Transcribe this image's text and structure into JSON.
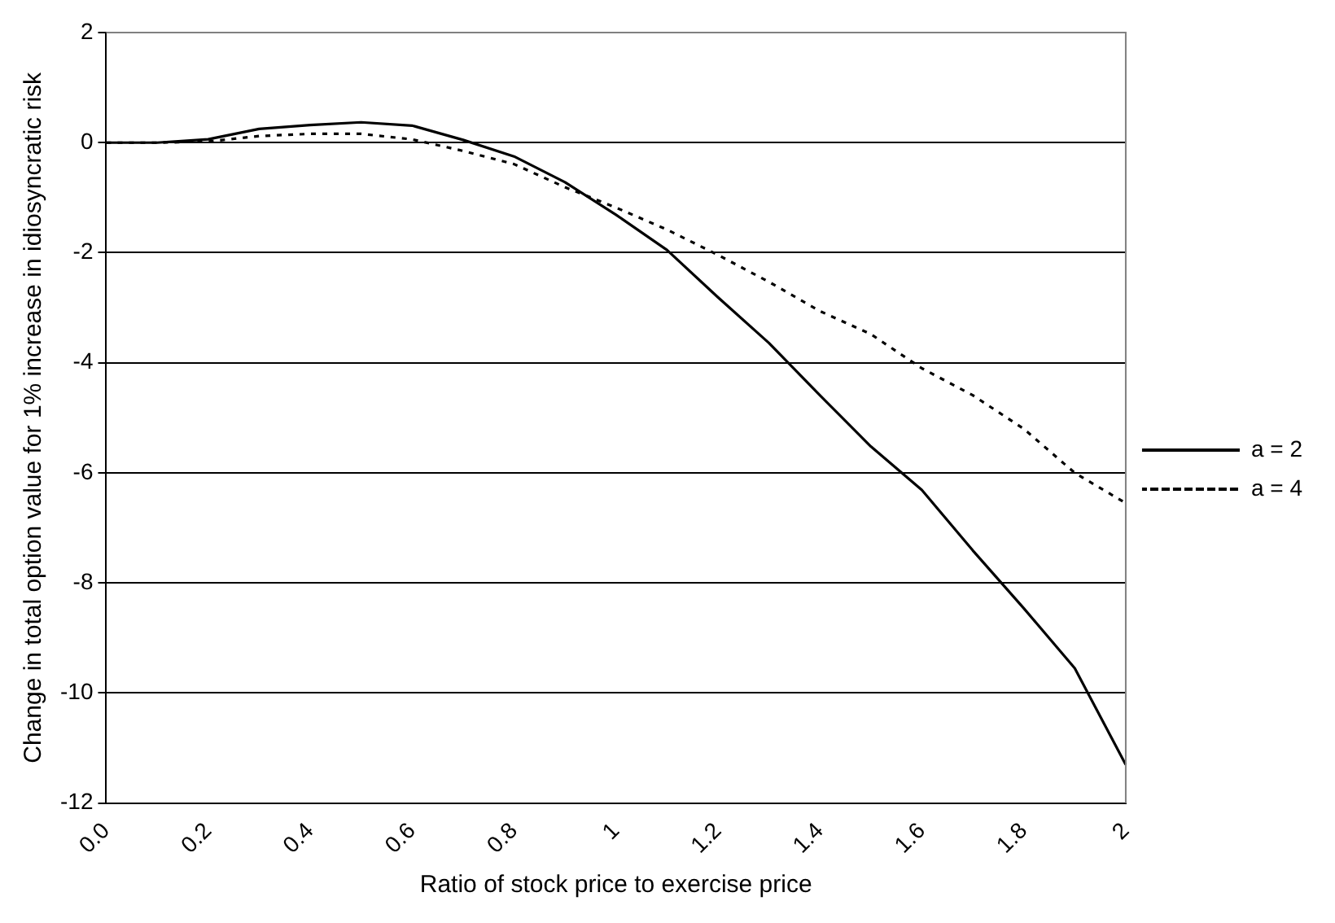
{
  "chart_data": {
    "type": "line",
    "xlabel": "Ratio of stock price to exercise price",
    "ylabel": "Change in total option value for 1% increase in idiosyncratic risk",
    "categories": [
      "0.0",
      null,
      "0.2",
      null,
      "0.4",
      null,
      "0.6",
      null,
      "0.8",
      null,
      "1",
      null,
      "1.2",
      null,
      "1.4",
      null,
      "1.6",
      null,
      "1.8",
      null,
      "2"
    ],
    "series": [
      {
        "name": "a = 2",
        "color": "#000000",
        "line_style": "solid",
        "values": [
          0,
          0,
          0.06,
          0.25,
          0.32,
          0.37,
          0.31,
          0.05,
          -0.25,
          -0.72,
          -1.31,
          -1.95,
          -2.81,
          -3.64,
          -4.59,
          -5.52,
          -6.31,
          -7.41,
          -8.46,
          -9.55,
          -11.3
        ]
      },
      {
        "name": "a = 4",
        "color": "#000000",
        "line_style": "dotted",
        "values": [
          0,
          0,
          0.02,
          0.12,
          0.16,
          0.16,
          0.06,
          -0.15,
          -0.39,
          -0.81,
          -1.18,
          -1.58,
          -2.04,
          -2.53,
          -3.06,
          -3.48,
          -4.1,
          -4.59,
          -5.2,
          -6.0,
          -6.55
        ]
      }
    ],
    "ylim": [
      -12,
      2
    ],
    "yticks": [
      -12,
      -10,
      -8,
      -6,
      -4,
      -2,
      0,
      2
    ],
    "grid": "y",
    "legend": "right",
    "marker": "none"
  }
}
